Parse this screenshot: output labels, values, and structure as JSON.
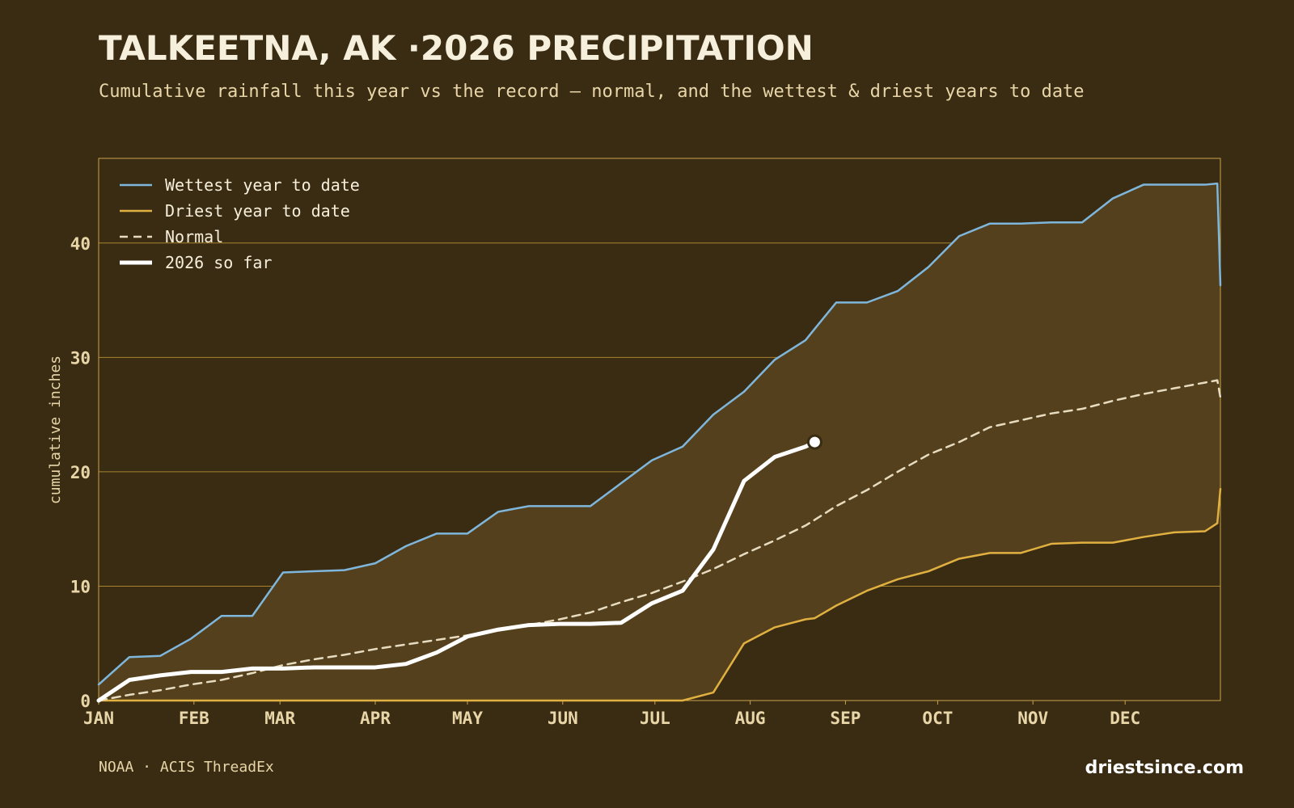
{
  "chart_data": {
    "type": "line",
    "title": "TALKEETNA, AK ·2026 PRECIPITATION",
    "subtitle": "Cumulative rainfall this year vs the record — normal, and the wettest & driest years to date",
    "ylabel": "cumulative inches",
    "source": "NOAA · ACIS ThreadEx",
    "brand": "driestsince.com",
    "legend": "upper left",
    "grid": true,
    "xlim": [
      0,
      365
    ],
    "ylim": [
      0,
      47.4
    ],
    "yticks": [
      0,
      10,
      20,
      30,
      40
    ],
    "xticks": [
      {
        "value": 0,
        "label": "JAN"
      },
      {
        "value": 31,
        "label": "FEB"
      },
      {
        "value": 59,
        "label": "MAR"
      },
      {
        "value": 90,
        "label": "APR"
      },
      {
        "value": 120,
        "label": "MAY"
      },
      {
        "value": 151,
        "label": "JUN"
      },
      {
        "value": 181,
        "label": "JUL"
      },
      {
        "value": 212,
        "label": "AUG"
      },
      {
        "value": 243,
        "label": "SEP"
      },
      {
        "value": 273,
        "label": "OCT"
      },
      {
        "value": 304,
        "label": "NOV"
      },
      {
        "value": 334,
        "label": "DEC"
      }
    ],
    "fill_between": {
      "series": [
        0,
        1
      ],
      "color": "#54401d"
    },
    "x": [
      0,
      10,
      20,
      30,
      40,
      50,
      60,
      70,
      80,
      90,
      100,
      110,
      120,
      130,
      140,
      150,
      160,
      170,
      180,
      190,
      200,
      210,
      220,
      230,
      233,
      240,
      250,
      260,
      270,
      280,
      290,
      300,
      310,
      320,
      330,
      340,
      350,
      360,
      364,
      365
    ],
    "series": [
      {
        "name": "Wettest year to date",
        "color": "#7fb6dc",
        "linestyle": "solid",
        "values": [
          1.4,
          3.8,
          3.9,
          5.4,
          7.4,
          7.4,
          11.2,
          11.3,
          11.4,
          12.0,
          13.5,
          14.6,
          14.6,
          16.5,
          17.0,
          17.0,
          17.0,
          19.0,
          21.0,
          22.2,
          25.0,
          27.0,
          29.8,
          31.5,
          32.5,
          34.8,
          34.8,
          35.8,
          37.9,
          40.6,
          41.7,
          41.7,
          41.8,
          41.8,
          43.9,
          45.1,
          45.1,
          45.1,
          45.2,
          36.3
        ]
      },
      {
        "name": "Driest year to date",
        "color": "#e0b040",
        "linestyle": "solid",
        "values": [
          0,
          0,
          0,
          0,
          0,
          0,
          0,
          0,
          0,
          0,
          0,
          0,
          0,
          0,
          0,
          0,
          0,
          0,
          0,
          0,
          0.7,
          5.0,
          6.4,
          7.1,
          7.2,
          8.3,
          9.6,
          10.6,
          11.3,
          12.4,
          12.9,
          12.9,
          13.7,
          13.8,
          13.8,
          14.3,
          14.7,
          14.8,
          15.5,
          18.5
        ]
      },
      {
        "name": "Normal",
        "color": "#e8dcc0",
        "linestyle": "dashed",
        "values": [
          0,
          0.5,
          0.9,
          1.4,
          1.8,
          2.4,
          3.1,
          3.6,
          4.0,
          4.5,
          4.9,
          5.3,
          5.7,
          6.2,
          6.6,
          7.1,
          7.7,
          8.6,
          9.4,
          10.4,
          11.5,
          12.8,
          14.0,
          15.3,
          15.8,
          17.0,
          18.4,
          20.0,
          21.5,
          22.6,
          23.9,
          24.5,
          25.1,
          25.5,
          26.2,
          26.8,
          27.3,
          27.8,
          28.0,
          26.5
        ]
      },
      {
        "name": "2026 so far",
        "color": "#ffffff",
        "linestyle": "bold",
        "values": [
          0,
          1.8,
          2.2,
          2.5,
          2.5,
          2.8,
          2.8,
          2.9,
          2.9,
          2.9,
          3.2,
          4.2,
          5.6,
          6.2,
          6.6,
          6.7,
          6.7,
          6.8,
          8.5,
          9.6,
          13.2,
          19.2,
          21.3,
          22.2,
          22.6,
          null,
          null,
          null,
          null,
          null,
          null,
          null,
          null,
          null,
          null,
          null,
          null,
          null,
          null,
          null
        ]
      }
    ]
  }
}
